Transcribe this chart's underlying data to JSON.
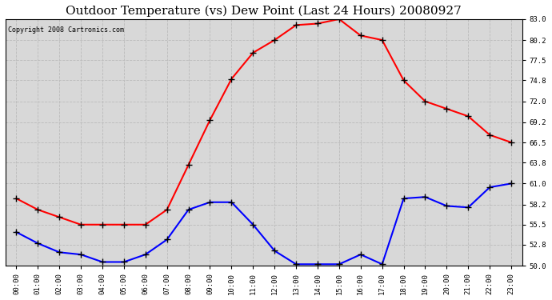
{
  "title": "Outdoor Temperature (vs) Dew Point (Last 24 Hours) 20080927",
  "copyright": "Copyright 2008 Cartronics.com",
  "x_labels": [
    "00:00",
    "01:00",
    "02:00",
    "03:00",
    "04:00",
    "05:00",
    "06:00",
    "07:00",
    "08:00",
    "09:00",
    "10:00",
    "11:00",
    "12:00",
    "13:00",
    "14:00",
    "15:00",
    "16:00",
    "17:00",
    "18:00",
    "19:00",
    "20:00",
    "21:00",
    "22:00",
    "23:00"
  ],
  "temp_data": [
    59.0,
    57.5,
    56.5,
    55.5,
    55.5,
    55.5,
    55.5,
    57.5,
    63.5,
    69.5,
    75.0,
    78.5,
    80.2,
    82.2,
    82.4,
    83.0,
    80.8,
    80.2,
    74.8,
    72.0,
    71.0,
    70.0,
    67.5,
    66.5
  ],
  "dew_data": [
    54.5,
    53.0,
    51.8,
    51.5,
    50.5,
    50.5,
    51.5,
    53.5,
    57.5,
    58.5,
    58.5,
    55.5,
    52.0,
    50.2,
    50.2,
    50.2,
    51.5,
    50.2,
    59.0,
    59.2,
    58.0,
    57.8,
    60.5,
    61.0
  ],
  "temp_color": "#ff0000",
  "dew_color": "#0000ff",
  "bg_color": "#ffffff",
  "plot_bg": "#d8d8d8",
  "grid_color": "#bbbbbb",
  "ylim_min": 50.0,
  "ylim_max": 83.0,
  "yticks": [
    50.0,
    52.8,
    55.5,
    58.2,
    61.0,
    63.8,
    66.5,
    69.2,
    72.0,
    74.8,
    77.5,
    80.2,
    83.0
  ],
  "title_fontsize": 11,
  "copyright_fontsize": 6,
  "marker": "+",
  "markersize": 6,
  "linewidth": 1.5
}
